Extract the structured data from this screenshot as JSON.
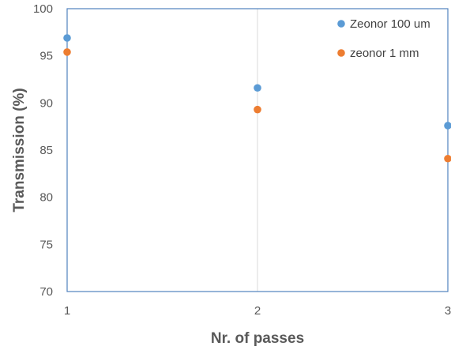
{
  "chart_data": {
    "type": "scatter",
    "title": "",
    "xlabel": "Nr. of passes",
    "ylabel": "Transmission (%)",
    "xlim": [
      1,
      3
    ],
    "ylim": [
      70,
      100
    ],
    "x_ticks": [
      1,
      2,
      3
    ],
    "y_ticks": [
      70,
      75,
      80,
      85,
      90,
      95,
      100
    ],
    "grid": "vertical",
    "legend_position": "top-right",
    "series": [
      {
        "name": "Zeonor 100 um",
        "color": "#5b9bd5",
        "x": [
          1,
          2,
          3
        ],
        "y": [
          96.9,
          91.6,
          87.6
        ]
      },
      {
        "name": "zeonor 1 mm",
        "color": "#ed7d31",
        "x": [
          1,
          2,
          3
        ],
        "y": [
          95.4,
          89.3,
          84.1
        ]
      }
    ]
  }
}
